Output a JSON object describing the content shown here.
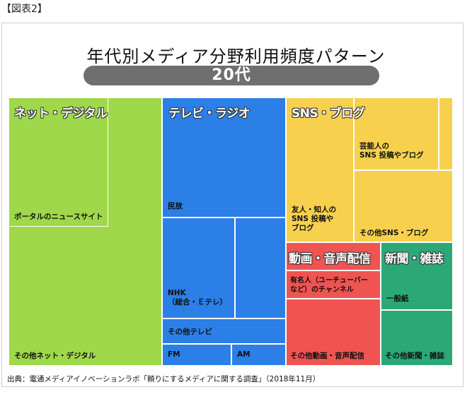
{
  "figure_label": "【図表2】",
  "source_note": "出典：電通メディアイノベーションラボ「頼りにするメディアに関する調査」（2018年11月）",
  "chart_data": {
    "type": "treemap",
    "title": "年代別メディア分野利用頻度パターン",
    "subtitle": "20代",
    "colors": {
      "net": "#9fd84a",
      "tv": "#2b7fe6",
      "sns": "#f7d04e",
      "video": "#ef5451",
      "news": "#2ca877"
    },
    "categories": [
      {
        "name": "ネット・デジタル",
        "color_key": "net",
        "items": [
          {
            "label": "ポータルのニュースサイト"
          },
          {
            "label": "その他ネット・デジタル"
          }
        ]
      },
      {
        "name": "テレビ・ラジオ",
        "color_key": "tv",
        "items": [
          {
            "label": "民放"
          },
          {
            "label": "NHK\n（総合・Ｅテレ）"
          },
          {
            "label": ""
          },
          {
            "label": "その他テレビ"
          },
          {
            "label": "FM"
          },
          {
            "label": "AM"
          }
        ]
      },
      {
        "name": "SNS・ブログ",
        "color_key": "sns",
        "items": [
          {
            "label": "芸能人の\nSNS 投稿やブログ"
          },
          {
            "label": "友人・知人の\nSNS 投稿や\nブログ"
          },
          {
            "label": "その他SNS・ブログ"
          }
        ]
      },
      {
        "name": "動画・音声配信",
        "color_key": "video",
        "items": [
          {
            "label": "有名人（ユーチューバー\nなど）のチャンネル"
          },
          {
            "label": "その他動画・音声配信"
          }
        ]
      },
      {
        "name": "新聞・雑誌",
        "color_key": "news",
        "items": [
          {
            "label": "一般紙"
          },
          {
            "label": "その他新聞・雑誌"
          }
        ]
      }
    ]
  }
}
